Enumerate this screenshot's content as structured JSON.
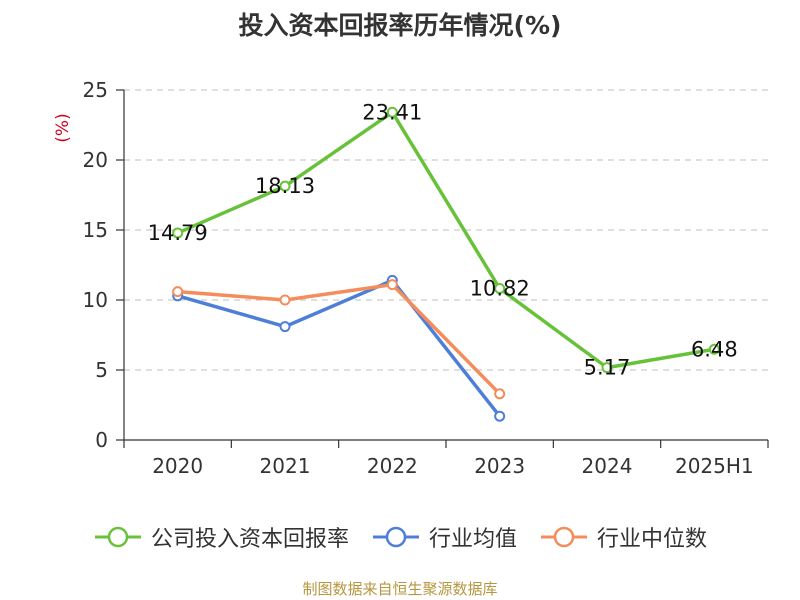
{
  "chart_data": {
    "type": "line",
    "title": "投入资本回报率历年情况(%)",
    "ylabel": "(%)",
    "xlabel": "",
    "categories": [
      "2020",
      "2021",
      "2022",
      "2023",
      "2024",
      "2025H1"
    ],
    "ylim": [
      0,
      25
    ],
    "yticks": [
      0,
      5,
      10,
      15,
      20,
      25
    ],
    "grid": true,
    "legend_position": "bottom",
    "series": [
      {
        "name": "公司投入资本回报率",
        "color": "#67c23a",
        "values": [
          14.79,
          18.13,
          23.41,
          10.82,
          5.17,
          6.48
        ],
        "labels": [
          "14.79",
          "18.13",
          "23.41",
          "10.82",
          "5.17",
          "6.48"
        ]
      },
      {
        "name": "行业均值",
        "color": "#4e7fd8",
        "values": [
          10.3,
          8.1,
          11.4,
          1.7,
          null,
          null
        ]
      },
      {
        "name": "行业中位数",
        "color": "#f58c5b",
        "values": [
          10.6,
          10.0,
          11.1,
          3.3,
          null,
          null
        ]
      }
    ]
  },
  "source": "制图数据来自恒生聚源数据库"
}
